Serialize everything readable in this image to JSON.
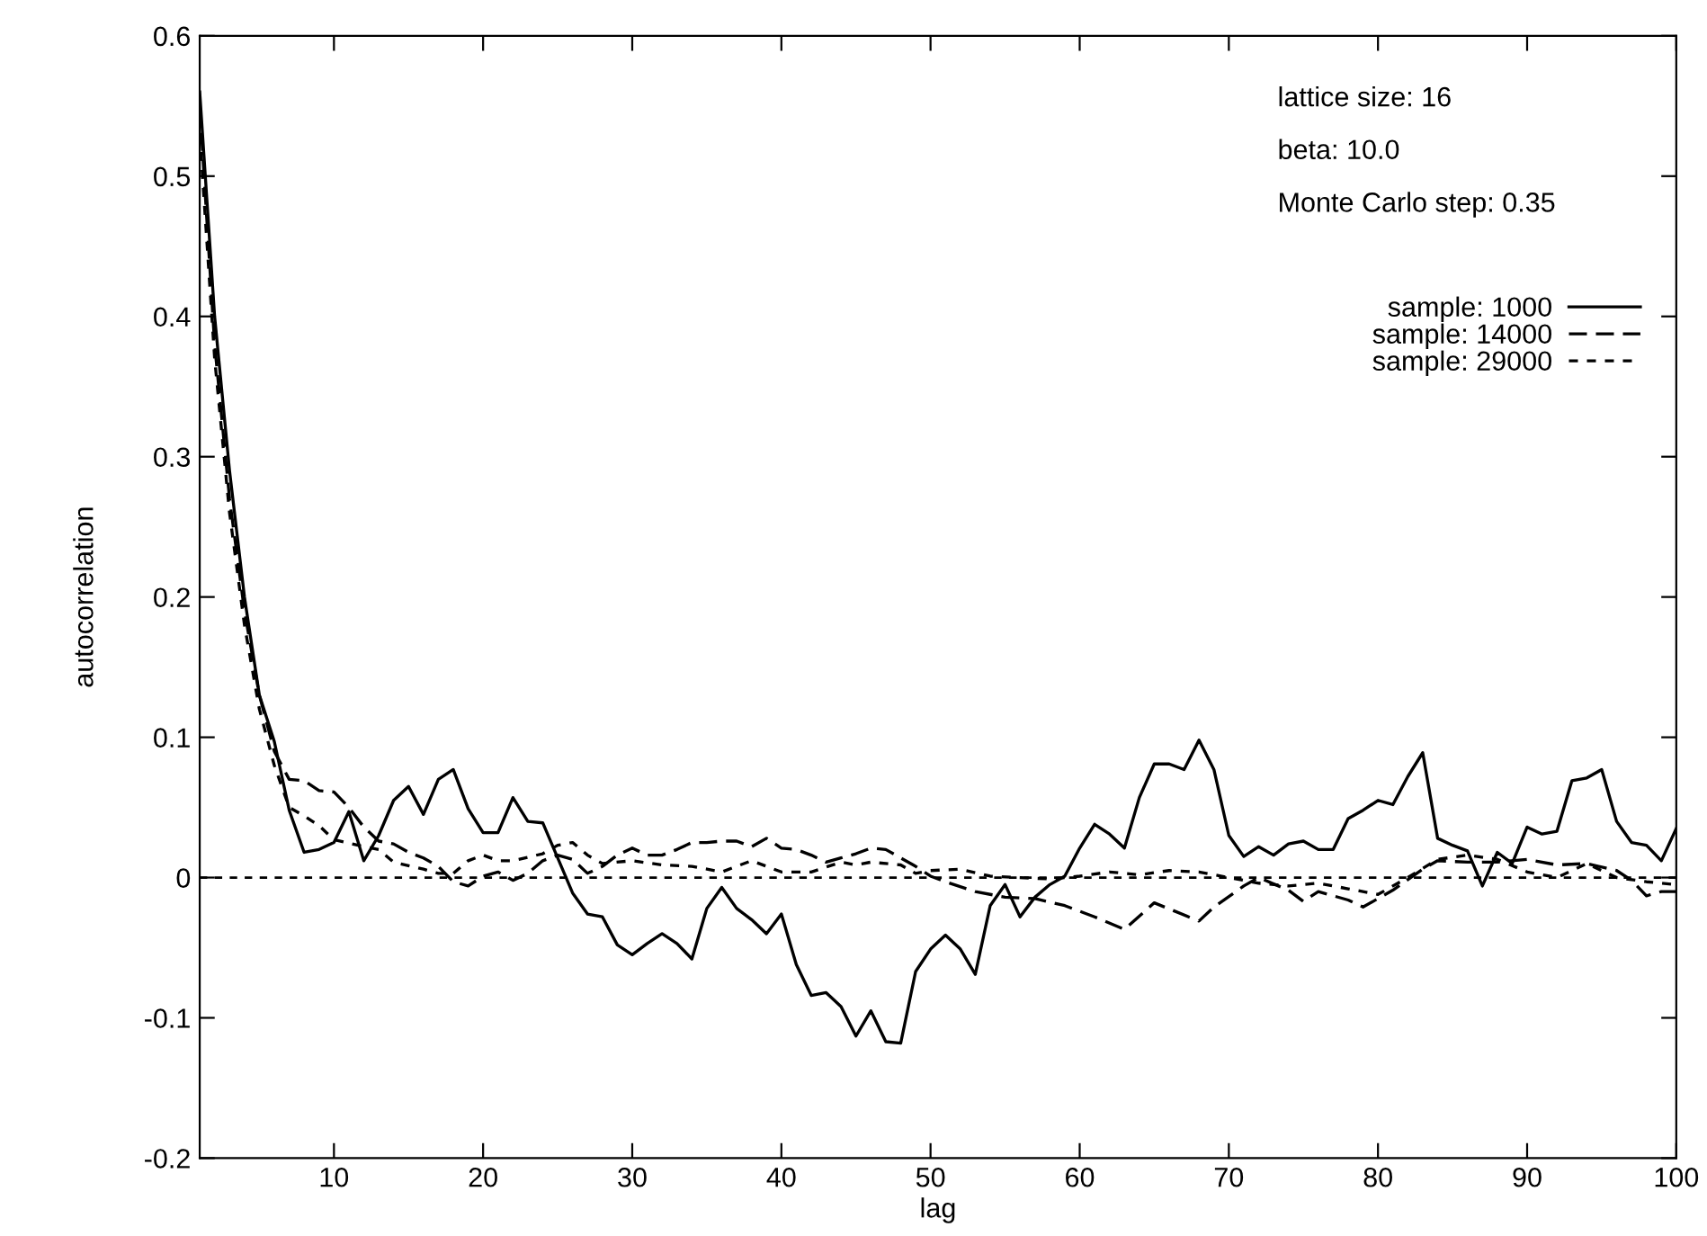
{
  "chart_data": {
    "type": "line",
    "xlabel": "lag",
    "ylabel": "autocorrelation",
    "xlim": [
      1,
      100
    ],
    "xticks": [
      10,
      20,
      30,
      40,
      50,
      60,
      70,
      80,
      90,
      100
    ],
    "ylim": [
      -0.2,
      0.6
    ],
    "yticks": [
      -0.2,
      -0.1,
      0,
      0.1,
      0.2,
      0.3,
      0.4,
      0.5,
      0.6
    ],
    "grid": false,
    "legend": "top right",
    "marker": "none",
    "annotations": [
      "lattice size: 16",
      "beta: 10.0",
      "Monte Carlo step: 0.35"
    ],
    "ref_lines": [
      {
        "axis": "y",
        "value": 0,
        "color": "#000000",
        "line_style": "dotted"
      }
    ],
    "series": [
      {
        "name": "sample: 1000",
        "color": "#000000",
        "line_style": "solid",
        "x": [
          1,
          2,
          3,
          4,
          5,
          6,
          7,
          8,
          9,
          10,
          11,
          12,
          13,
          14,
          15,
          16,
          17,
          18,
          19,
          20,
          21,
          22,
          23,
          24,
          25,
          26,
          27,
          28,
          29,
          30,
          31,
          32,
          33,
          34,
          35,
          36,
          37,
          38,
          39,
          40,
          41,
          42,
          43,
          44,
          45,
          46,
          47,
          48,
          49,
          50,
          51,
          52,
          53,
          54,
          55,
          56,
          57,
          58,
          59,
          60,
          61,
          62,
          63,
          64,
          65,
          66,
          67,
          68,
          69,
          70,
          71,
          72,
          73,
          74,
          75,
          76,
          77,
          78,
          79,
          80,
          81,
          82,
          83,
          84,
          85,
          86,
          87,
          88,
          89,
          90,
          91,
          92,
          93,
          94,
          95,
          96,
          97,
          98,
          99,
          100
        ],
        "values": [
          0.56,
          0.4,
          0.29,
          0.2,
          0.13,
          0.097,
          0.048,
          0.018,
          0.02,
          0.025,
          0.047,
          0.012,
          0.03,
          0.055,
          0.065,
          0.045,
          0.07,
          0.077,
          0.049,
          0.032,
          0.032,
          0.057,
          0.04,
          0.039,
          0.014,
          -0.011,
          -0.026,
          -0.028,
          -0.048,
          -0.055,
          -0.047,
          -0.04,
          -0.047,
          -0.058,
          -0.022,
          -0.007,
          -0.022,
          -0.03,
          -0.04,
          -0.026,
          -0.062,
          -0.084,
          -0.082,
          -0.092,
          -0.113,
          -0.095,
          -0.117,
          -0.118,
          -0.067,
          -0.051,
          -0.041,
          -0.051,
          -0.069,
          -0.02,
          -0.005,
          -0.028,
          -0.014,
          -0.005,
          0.001,
          0.021,
          0.038,
          0.031,
          0.021,
          0.057,
          0.081,
          0.081,
          0.077,
          0.098,
          0.077,
          0.03,
          0.015,
          0.022,
          0.016,
          0.024,
          0.026,
          0.02,
          0.02,
          0.042,
          0.048,
          0.055,
          0.052,
          0.072,
          0.089,
          0.028,
          0.023,
          0.019,
          -0.006,
          0.018,
          0.01,
          0.036,
          0.031,
          0.033,
          0.069,
          0.071,
          0.077,
          0.04,
          0.025,
          0.023,
          0.012,
          0.035
        ]
      },
      {
        "name": "sample: 14000",
        "color": "#000000",
        "line_style": "dashed",
        "x": [
          1,
          2,
          3,
          4,
          5,
          6,
          7,
          8,
          9,
          10,
          11,
          12,
          13,
          14,
          15,
          16,
          17,
          18,
          19,
          20,
          21,
          22,
          23,
          24,
          25,
          26,
          27,
          28,
          29,
          30,
          31,
          32,
          33,
          34,
          35,
          36,
          37,
          38,
          39,
          40,
          41,
          42,
          43,
          44,
          45,
          46,
          47,
          48,
          49,
          50,
          51,
          53,
          55,
          57,
          59,
          61,
          63,
          65,
          68,
          69,
          71,
          72,
          74,
          75,
          76,
          78,
          79,
          81,
          83,
          84,
          86,
          88,
          90,
          92,
          94,
          96,
          97,
          98,
          99,
          100
        ],
        "values": [
          0.55,
          0.38,
          0.27,
          0.19,
          0.13,
          0.09,
          0.07,
          0.069,
          0.062,
          0.061,
          0.05,
          0.036,
          0.026,
          0.024,
          0.018,
          0.014,
          0.008,
          -0.003,
          -0.006,
          0.001,
          0.004,
          -0.002,
          0.003,
          0.012,
          0.016,
          0.013,
          0.003,
          0.008,
          0.016,
          0.021,
          0.016,
          0.016,
          0.02,
          0.025,
          0.025,
          0.026,
          0.026,
          0.022,
          0.028,
          0.021,
          0.02,
          0.016,
          0.011,
          0.014,
          0.017,
          0.021,
          0.02,
          0.014,
          0.008,
          0.001,
          -0.003,
          -0.01,
          -0.014,
          -0.015,
          -0.02,
          -0.028,
          -0.037,
          -0.018,
          -0.031,
          -0.021,
          -0.006,
          0.0,
          -0.009,
          -0.017,
          -0.01,
          -0.016,
          -0.021,
          -0.009,
          0.006,
          0.012,
          0.011,
          0.011,
          0.013,
          0.009,
          0.01,
          0.005,
          -0.002,
          -0.013,
          -0.01,
          -0.01
        ]
      },
      {
        "name": "sample: 29000",
        "color": "#000000",
        "line_style": "dotted",
        "x": [
          1,
          2,
          3,
          4,
          5,
          6,
          7,
          8,
          9,
          10,
          12,
          13,
          14,
          16,
          17,
          18,
          19,
          20,
          21,
          22,
          24,
          25,
          26,
          27,
          28,
          30,
          32,
          34,
          36,
          38,
          40,
          42,
          44,
          45,
          46,
          48,
          49,
          50,
          52,
          54,
          56,
          58,
          60,
          62,
          64,
          66,
          68,
          70,
          72,
          74,
          76,
          78,
          80,
          82,
          84,
          86,
          88,
          90,
          92,
          94,
          96,
          98,
          100
        ],
        "values": [
          0.53,
          0.37,
          0.26,
          0.18,
          0.12,
          0.08,
          0.05,
          0.044,
          0.037,
          0.027,
          0.022,
          0.02,
          0.011,
          0.006,
          0.003,
          0.003,
          0.012,
          0.016,
          0.012,
          0.012,
          0.017,
          0.023,
          0.025,
          0.016,
          0.01,
          0.012,
          0.009,
          0.008,
          0.004,
          0.012,
          0.004,
          0.004,
          0.011,
          0.009,
          0.011,
          0.009,
          0.003,
          0.005,
          0.006,
          0.001,
          0.0,
          -0.001,
          0.001,
          0.004,
          0.002,
          0.005,
          0.004,
          0.0,
          -0.004,
          -0.006,
          -0.004,
          -0.008,
          -0.012,
          0.0,
          0.013,
          0.016,
          0.013,
          0.004,
          0.0,
          0.01,
          0.0,
          -0.003,
          -0.005
        ]
      }
    ]
  }
}
